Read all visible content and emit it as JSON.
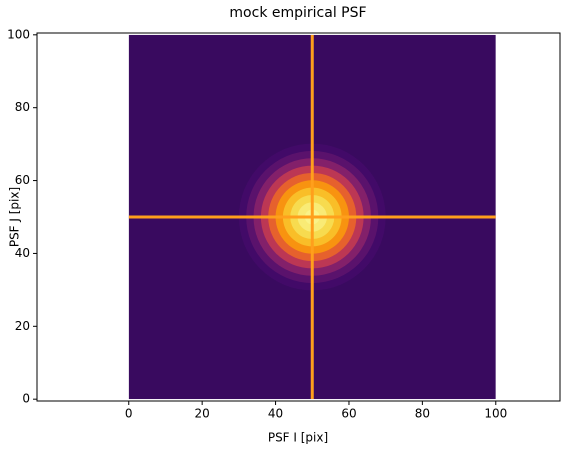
{
  "chart_data": {
    "type": "image",
    "title": "mock empirical PSF",
    "xlabel": "PSF I [pix]",
    "ylabel": "PSF J [pix]",
    "xlim": [
      -25,
      117.5
    ],
    "ylim": [
      -0.5,
      100.5
    ],
    "xticks": [
      0,
      20,
      40,
      60,
      80,
      100
    ],
    "yticks": [
      0,
      20,
      40,
      60,
      80,
      100
    ],
    "extent": [
      0,
      100,
      0,
      100
    ],
    "center": [
      50,
      50
    ],
    "background": 0.18,
    "profile": {
      "radius": [
        20,
        18,
        16,
        14,
        12,
        10,
        8,
        6,
        4,
        2
      ],
      "intensity": [
        0.2,
        0.26,
        0.36,
        0.5,
        0.64,
        0.76,
        0.85,
        0.91,
        0.95,
        0.97
      ]
    },
    "crosshair": {
      "x": 50,
      "y": 50,
      "color": "#ff9f1c"
    }
  }
}
